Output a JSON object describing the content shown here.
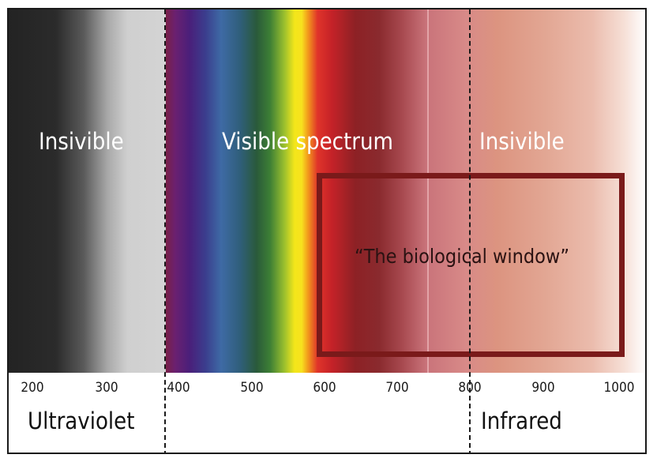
{
  "labels": {
    "uv_band": "Insivible",
    "visible_band": "Visible spectrum",
    "ir_band": "Insivible",
    "window": "“The biological window”"
  },
  "regions": {
    "ultraviolet": "Ultraviolet",
    "infrared": "Infrared"
  },
  "axis": {
    "ticks": [
      "200",
      "300",
      "400",
      "500",
      "600",
      "700",
      "800",
      "900",
      "1000"
    ],
    "range": [
      200,
      1000
    ],
    "boundaries": [
      400,
      800
    ]
  },
  "colors": {
    "box_border": "#7a1a1a",
    "marker_line": "#e3a4a8"
  }
}
